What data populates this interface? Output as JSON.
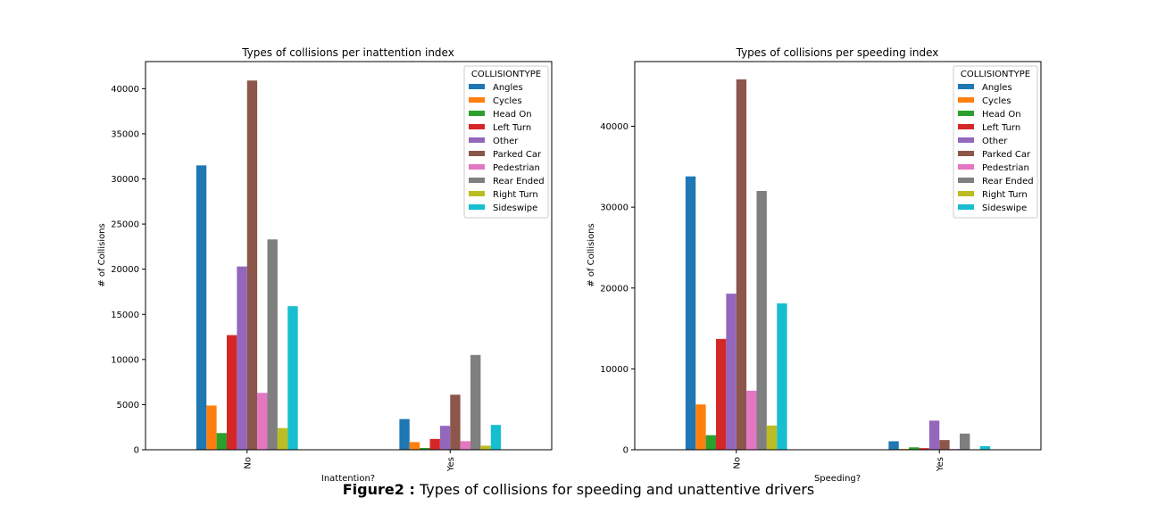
{
  "caption": {
    "label": "Figure2 :",
    "text": "Types of collisions for speeding and unattentive drivers"
  },
  "colors": {
    "Angles": "#1f77b4",
    "Cycles": "#ff7f0e",
    "Head On": "#2ca02c",
    "Left Turn": "#d62728",
    "Other": "#9467bd",
    "Parked Car": "#8c564b",
    "Pedestrian": "#e377c2",
    "Rear Ended": "#7f7f7f",
    "Right Turn": "#bcbd22",
    "Sideswipe": "#17becf"
  },
  "chart_data": [
    {
      "type": "bar",
      "title": "Types of collisions per inattention index",
      "xlabel": "Inattention?",
      "ylabel": "# of Collisions",
      "categories": [
        "No",
        "Yes"
      ],
      "legend_title": "COLLISIONTYPE",
      "legend_position": "top-right",
      "ylim": [
        0,
        43000
      ],
      "yticks": [
        0,
        5000,
        10000,
        15000,
        20000,
        25000,
        30000,
        35000,
        40000
      ],
      "grid": false,
      "series": [
        {
          "name": "Angles",
          "values": [
            31500,
            3400
          ]
        },
        {
          "name": "Cycles",
          "values": [
            4900,
            850
          ]
        },
        {
          "name": "Head On",
          "values": [
            1850,
            200
          ]
        },
        {
          "name": "Left Turn",
          "values": [
            12700,
            1200
          ]
        },
        {
          "name": "Other",
          "values": [
            20300,
            2650
          ]
        },
        {
          "name": "Parked Car",
          "values": [
            40900,
            6100
          ]
        },
        {
          "name": "Pedestrian",
          "values": [
            6300,
            950
          ]
        },
        {
          "name": "Rear Ended",
          "values": [
            23300,
            10500
          ]
        },
        {
          "name": "Right Turn",
          "values": [
            2400,
            450
          ]
        },
        {
          "name": "Sideswipe",
          "values": [
            15900,
            2750
          ]
        }
      ]
    },
    {
      "type": "bar",
      "title": "Types of collisions per speeding index",
      "xlabel": "Speeding?",
      "ylabel": "# of Collisions",
      "categories": [
        "No",
        "Yes"
      ],
      "legend_title": "COLLISIONTYPE",
      "legend_position": "top-right",
      "ylim": [
        0,
        48000
      ],
      "yticks": [
        0,
        10000,
        20000,
        30000,
        40000
      ],
      "grid": false,
      "series": [
        {
          "name": "Angles",
          "values": [
            33800,
            1050
          ]
        },
        {
          "name": "Cycles",
          "values": [
            5600,
            100
          ]
        },
        {
          "name": "Head On",
          "values": [
            1800,
            300
          ]
        },
        {
          "name": "Left Turn",
          "values": [
            13700,
            200
          ]
        },
        {
          "name": "Other",
          "values": [
            19300,
            3600
          ]
        },
        {
          "name": "Parked Car",
          "values": [
            45800,
            1200
          ]
        },
        {
          "name": "Pedestrian",
          "values": [
            7300,
            100
          ]
        },
        {
          "name": "Rear Ended",
          "values": [
            32000,
            2000
          ]
        },
        {
          "name": "Right Turn",
          "values": [
            3000,
            50
          ]
        },
        {
          "name": "Sideswipe",
          "values": [
            18100,
            450
          ]
        }
      ]
    }
  ]
}
